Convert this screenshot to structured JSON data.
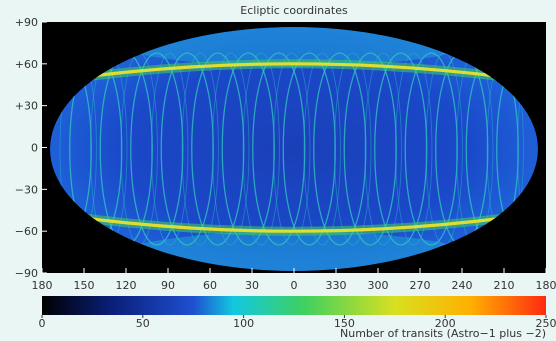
{
  "chart_data": {
    "type": "heatmap",
    "projection": "mollweide",
    "title": "Ecliptic coordinates",
    "lat_ticks": [
      "+90",
      "+60",
      "+30",
      "0",
      "−30",
      "−60",
      "−90"
    ],
    "lat_values": [
      90,
      60,
      30,
      0,
      -30,
      -60,
      -90
    ],
    "lon_ticks": [
      "180",
      "150",
      "120",
      "90",
      "60",
      "30",
      "0",
      "330",
      "300",
      "270",
      "240",
      "210",
      "180"
    ],
    "lon_values": [
      180,
      150,
      120,
      90,
      60,
      30,
      0,
      330,
      300,
      270,
      240,
      210,
      180
    ],
    "colorbar": {
      "label": "Number of transits (Astro−1 plus −2)",
      "range": [
        0,
        250
      ],
      "ticks": [
        "0",
        "50",
        "100",
        "150",
        "200",
        "250"
      ],
      "tick_values": [
        0,
        50,
        100,
        150,
        200,
        250
      ],
      "colors": [
        "#000000",
        "#0a1f7a",
        "#1f4fd0",
        "#12c8e0",
        "#3fd060",
        "#d8e020",
        "#ffb000",
        "#ff2a10"
      ]
    },
    "features": {
      "bright_bands_lat": [
        55,
        -55
      ],
      "background_level": 60,
      "band_level": 180
    },
    "colors": {
      "plot_background": "#000000",
      "page_background": "#eaf6f4"
    }
  }
}
